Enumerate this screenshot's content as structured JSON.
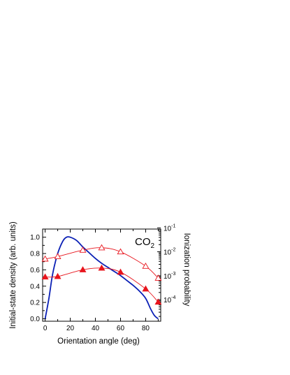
{
  "chart_data": {
    "type": "line",
    "xlabel": "Orientation angle (deg)",
    "ylabel": "Initial-state density (arb. units)",
    "y2label": "Ionization probability",
    "annotation": {
      "main": "CO",
      "subscript": "2"
    },
    "xlim": [
      -2,
      92
    ],
    "ylim": [
      -0.03,
      1.1
    ],
    "y2lim_log": [
      -4.9,
      -1.05
    ],
    "x_ticks": [
      0,
      20,
      40,
      60,
      80
    ],
    "x_tick_labels": [
      "0",
      "20",
      "40",
      "60",
      "80"
    ],
    "y_ticks": [
      0.0,
      0.2,
      0.4,
      0.6,
      0.8,
      1.0
    ],
    "y_tick_labels": [
      "0.0",
      "0.2",
      "0.4",
      "0.6",
      "0.8",
      "1.0"
    ],
    "y2_ticks": [
      -4,
      -3,
      -2,
      -1
    ],
    "y2_tick_labels": [
      {
        "base": "10",
        "exp": "-4"
      },
      {
        "base": "10",
        "exp": "-3"
      },
      {
        "base": "10",
        "exp": "-2"
      },
      {
        "base": "10",
        "exp": "-1"
      }
    ],
    "grid": false,
    "series": [
      {
        "axis": "left",
        "style": "line",
        "color": "#0a1fb5",
        "points": [
          [
            0,
            0.0
          ],
          [
            3,
            0.25
          ],
          [
            6,
            0.55
          ],
          [
            10,
            0.8
          ],
          [
            14,
            0.95
          ],
          [
            17,
            1.0
          ],
          [
            20,
            1.0
          ],
          [
            25,
            0.96
          ],
          [
            30,
            0.88
          ],
          [
            35,
            0.81
          ],
          [
            40,
            0.74
          ],
          [
            45,
            0.68
          ],
          [
            50,
            0.63
          ],
          [
            55,
            0.58
          ],
          [
            60,
            0.53
          ],
          [
            65,
            0.47
          ],
          [
            70,
            0.41
          ],
          [
            75,
            0.34
          ],
          [
            80,
            0.25
          ],
          [
            84,
            0.12
          ],
          [
            87,
            0.04
          ],
          [
            90,
            0.0
          ]
        ]
      },
      {
        "axis": "right",
        "style": "line+markers",
        "marker": "triangle-open",
        "color": "#e8141c",
        "points": [
          [
            0,
            -2.3
          ],
          [
            10,
            -2.2
          ],
          [
            30,
            -1.93
          ],
          [
            45,
            -1.83
          ],
          [
            60,
            -2.0
          ],
          [
            80,
            -2.6
          ],
          [
            90,
            -3.1
          ]
        ]
      },
      {
        "axis": "right",
        "style": "line+markers",
        "marker": "triangle-filled",
        "color": "#e8141c",
        "points": [
          [
            0,
            -3.05
          ],
          [
            10,
            -3.03
          ],
          [
            30,
            -2.75
          ],
          [
            45,
            -2.68
          ],
          [
            60,
            -2.85
          ],
          [
            80,
            -3.55
          ],
          [
            90,
            -4.1
          ]
        ]
      }
    ]
  }
}
